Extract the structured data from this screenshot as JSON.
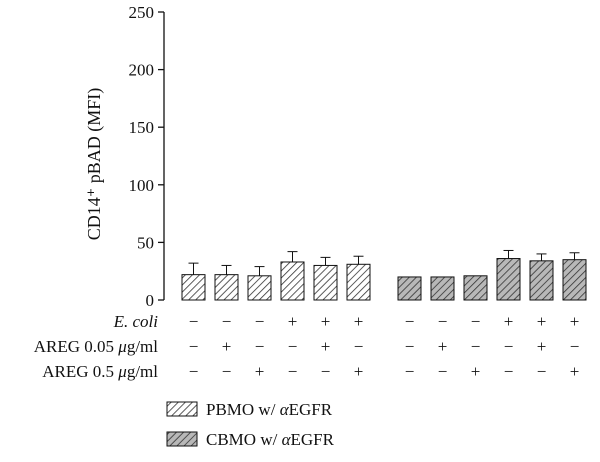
{
  "chart_data": {
    "type": "bar",
    "title": "",
    "xlabel": "",
    "ylabel": "CD14⁺ pBAD (MFI)",
    "ylim": [
      0,
      250
    ],
    "yticks": [
      "0",
      "50",
      "100",
      "150",
      "200",
      "250"
    ],
    "grid": false,
    "legend_position": "bottom",
    "groups": [
      {
        "name": "PBMO w/ αEGFR",
        "fill": "#ffffff",
        "hatch": "#333333",
        "values": [
          22,
          22,
          21,
          33,
          30,
          31
        ],
        "errors": [
          10,
          8,
          8,
          9,
          7,
          7
        ]
      },
      {
        "name": "CBMO w/ αEGFR",
        "fill": "#b8b8b8",
        "hatch": "#333333",
        "values": [
          20,
          20,
          21,
          36,
          34,
          35
        ],
        "errors": [
          1,
          1,
          1,
          7,
          6,
          6
        ]
      }
    ],
    "condition_rows": [
      {
        "label_main": "E. coli",
        "label_unit": "",
        "italic": true,
        "signs": [
          "−",
          "−",
          "−",
          "+",
          "+",
          "+"
        ]
      },
      {
        "label_main": "AREG 0.05 ",
        "label_unit": "μg/ml",
        "italic": false,
        "signs": [
          "−",
          "+",
          "−",
          "−",
          "+",
          "−"
        ]
      },
      {
        "label_main": "AREG 0.5 ",
        "label_unit": "μg/ml",
        "italic": false,
        "signs": [
          "−",
          "−",
          "+",
          "−",
          "−",
          "+"
        ]
      }
    ]
  }
}
